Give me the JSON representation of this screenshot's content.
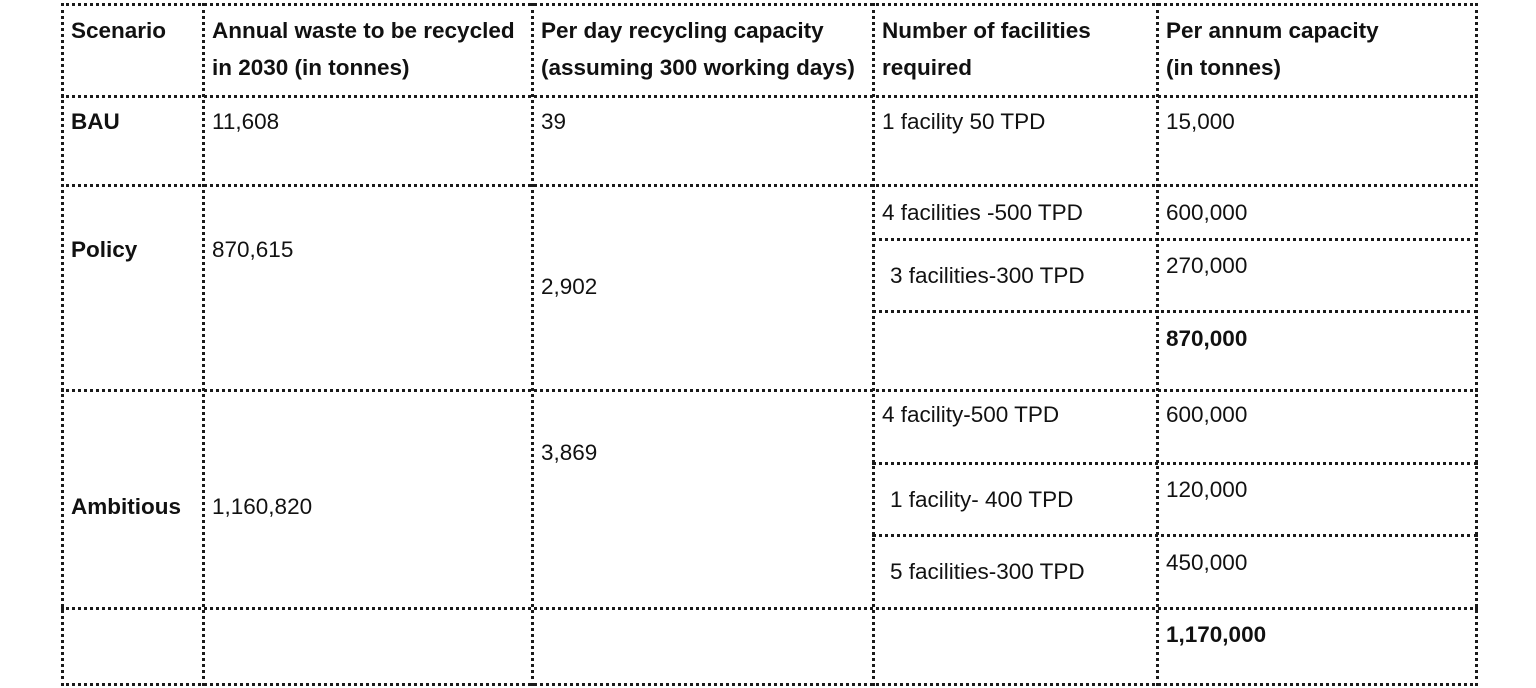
{
  "table": {
    "headers": {
      "scenario": "Scenario",
      "annual_waste": [
        "Annual waste to be recycled",
        "in 2030 (in tonnes)"
      ],
      "per_day": [
        "Per day recycling capacity",
        "(assuming 300 working days)"
      ],
      "facilities": [
        "Number of facilities",
        "required"
      ],
      "per_annum": [
        "Per annum capacity",
        "(in tonnes)"
      ]
    },
    "bau": {
      "scenario": "BAU",
      "annual_waste": "11,608",
      "per_day": "39",
      "facilities": [
        "1 facility 50 TPD"
      ],
      "capacities": [
        "15,000"
      ]
    },
    "policy": {
      "scenario": "Policy",
      "annual_waste": "870,615",
      "per_day": "2,902",
      "facilities": [
        "4 facilities -500 TPD",
        "3 facilities-300 TPD"
      ],
      "capacities": [
        "600,000",
        "270,000"
      ],
      "total": "870,000"
    },
    "ambitious": {
      "scenario": "Ambitious",
      "annual_waste": "1,160,820",
      "per_day": "3,869",
      "facilities": [
        "4 facility-500 TPD",
        "1 facility- 400 TPD",
        "5 facilities-300 TPD"
      ],
      "capacities": [
        "600,000",
        "120,000",
        "450,000"
      ],
      "total": "1,170,000"
    }
  }
}
